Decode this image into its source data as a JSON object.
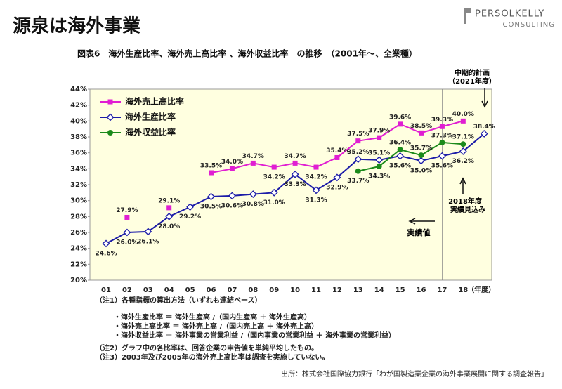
{
  "header": {
    "title": "源泉は海外事業",
    "logo_main": "PERSOLKELLY",
    "logo_sub": "CONSULTING"
  },
  "chart_data": {
    "type": "line",
    "title": "図表6　海外生産比率、海外売上高比率 、海外収益比率　の推移　（2001年～、全業種）",
    "x_unit": "（年度）",
    "categories": [
      "01",
      "02",
      "03",
      "04",
      "05",
      "06",
      "07",
      "08",
      "09",
      "10",
      "11",
      "12",
      "13",
      "14",
      "15",
      "16",
      "17",
      "18",
      null
    ],
    "series": [
      {
        "name": "海外売上高比率",
        "color": "#e01ed2",
        "marker": "square",
        "values": [
          null,
          27.9,
          null,
          29.1,
          null,
          33.5,
          34.0,
          34.7,
          34.2,
          34.7,
          34.2,
          35.4,
          37.5,
          37.9,
          39.6,
          38.5,
          39.3,
          40.0,
          null
        ],
        "value_labels": [
          null,
          "27.9%",
          null,
          "29.1%",
          null,
          "33.5%",
          "34.0%",
          "34.7%",
          "34.2%",
          "34.7%",
          "34.2%",
          "35.4%",
          "37.5%",
          "37.9%",
          "39.6%",
          "38.5%",
          "39.3%",
          "40.0%",
          null
        ]
      },
      {
        "name": "海外生産比率",
        "color": "#1c1ca8",
        "marker": "diamond",
        "values": [
          24.6,
          26.0,
          26.1,
          28.0,
          29.2,
          30.5,
          30.6,
          30.8,
          31.0,
          33.3,
          31.3,
          32.9,
          35.2,
          35.1,
          35.6,
          35.0,
          35.6,
          36.2,
          38.4
        ],
        "value_labels": [
          "24.6%",
          "26.0%",
          "26.1%",
          "28.0%",
          "29.2%",
          "30.5%",
          "30.6%",
          "30.8%",
          "31.0%",
          "33.3%",
          "31.3%",
          "32.9%",
          "35.2%",
          "35.1%",
          "35.6%",
          "35.0%",
          "35.6%",
          "36.2%",
          "38.4%"
        ]
      },
      {
        "name": "海外収益比率",
        "color": "#1b8a1b",
        "marker": "circle",
        "values": [
          null,
          null,
          null,
          null,
          null,
          null,
          null,
          null,
          null,
          null,
          null,
          null,
          33.7,
          34.3,
          36.4,
          35.7,
          37.3,
          37.1,
          null
        ],
        "value_labels": [
          null,
          null,
          null,
          null,
          null,
          null,
          null,
          null,
          null,
          null,
          null,
          null,
          "33.7%",
          "34.3%",
          "36.4%",
          "35.7%",
          "37.3%",
          "37.1%",
          null
        ]
      }
    ],
    "ylim": [
      20,
      44
    ],
    "yticks": [
      {
        "value": 20,
        "label": "20%"
      },
      {
        "value": 22,
        "label": "22%"
      },
      {
        "value": 24,
        "label": "24%"
      },
      {
        "value": 26,
        "label": "26%"
      },
      {
        "value": 28,
        "label": "28%"
      },
      {
        "value": 30,
        "label": "30%"
      },
      {
        "value": 32,
        "label": "32%"
      },
      {
        "value": 34,
        "label": "34%"
      },
      {
        "value": 36,
        "label": "36%"
      },
      {
        "value": 38,
        "label": "38%"
      },
      {
        "value": 40,
        "label": "40%"
      },
      {
        "value": 42,
        "label": "42%"
      },
      {
        "value": 44,
        "label": "44%"
      }
    ],
    "legend": "upper left",
    "annotations": [
      "中期的計画",
      "（2021年度）",
      "2018年度",
      "実績見込み",
      "実績値"
    ]
  },
  "notes": [
    "（注1）各種指標の算出方法（いずれも連結ベース）",
    "・海外生産比率 ＝ 海外生産高 /（国内生産高 ＋ 海外生産高）",
    "・海外売上高比率 ＝ 海外売上高 /（国内売上高 ＋ 海外売上高）",
    "・海外収益比率 ＝ 海外事業の営業利益 /（国内事業の営業利益 ＋ 海外事業の営業利益）",
    "（注2）グラフ中の各比率は、回答企業の申告値を単純平均したもの。",
    "（注3）2003年及び2005年の海外売上高比率は調査を実施していない。"
  ],
  "source": "出所：株式会社国際協力銀行「わが国製造業企業の海外事業展開に関する調査報告」"
}
